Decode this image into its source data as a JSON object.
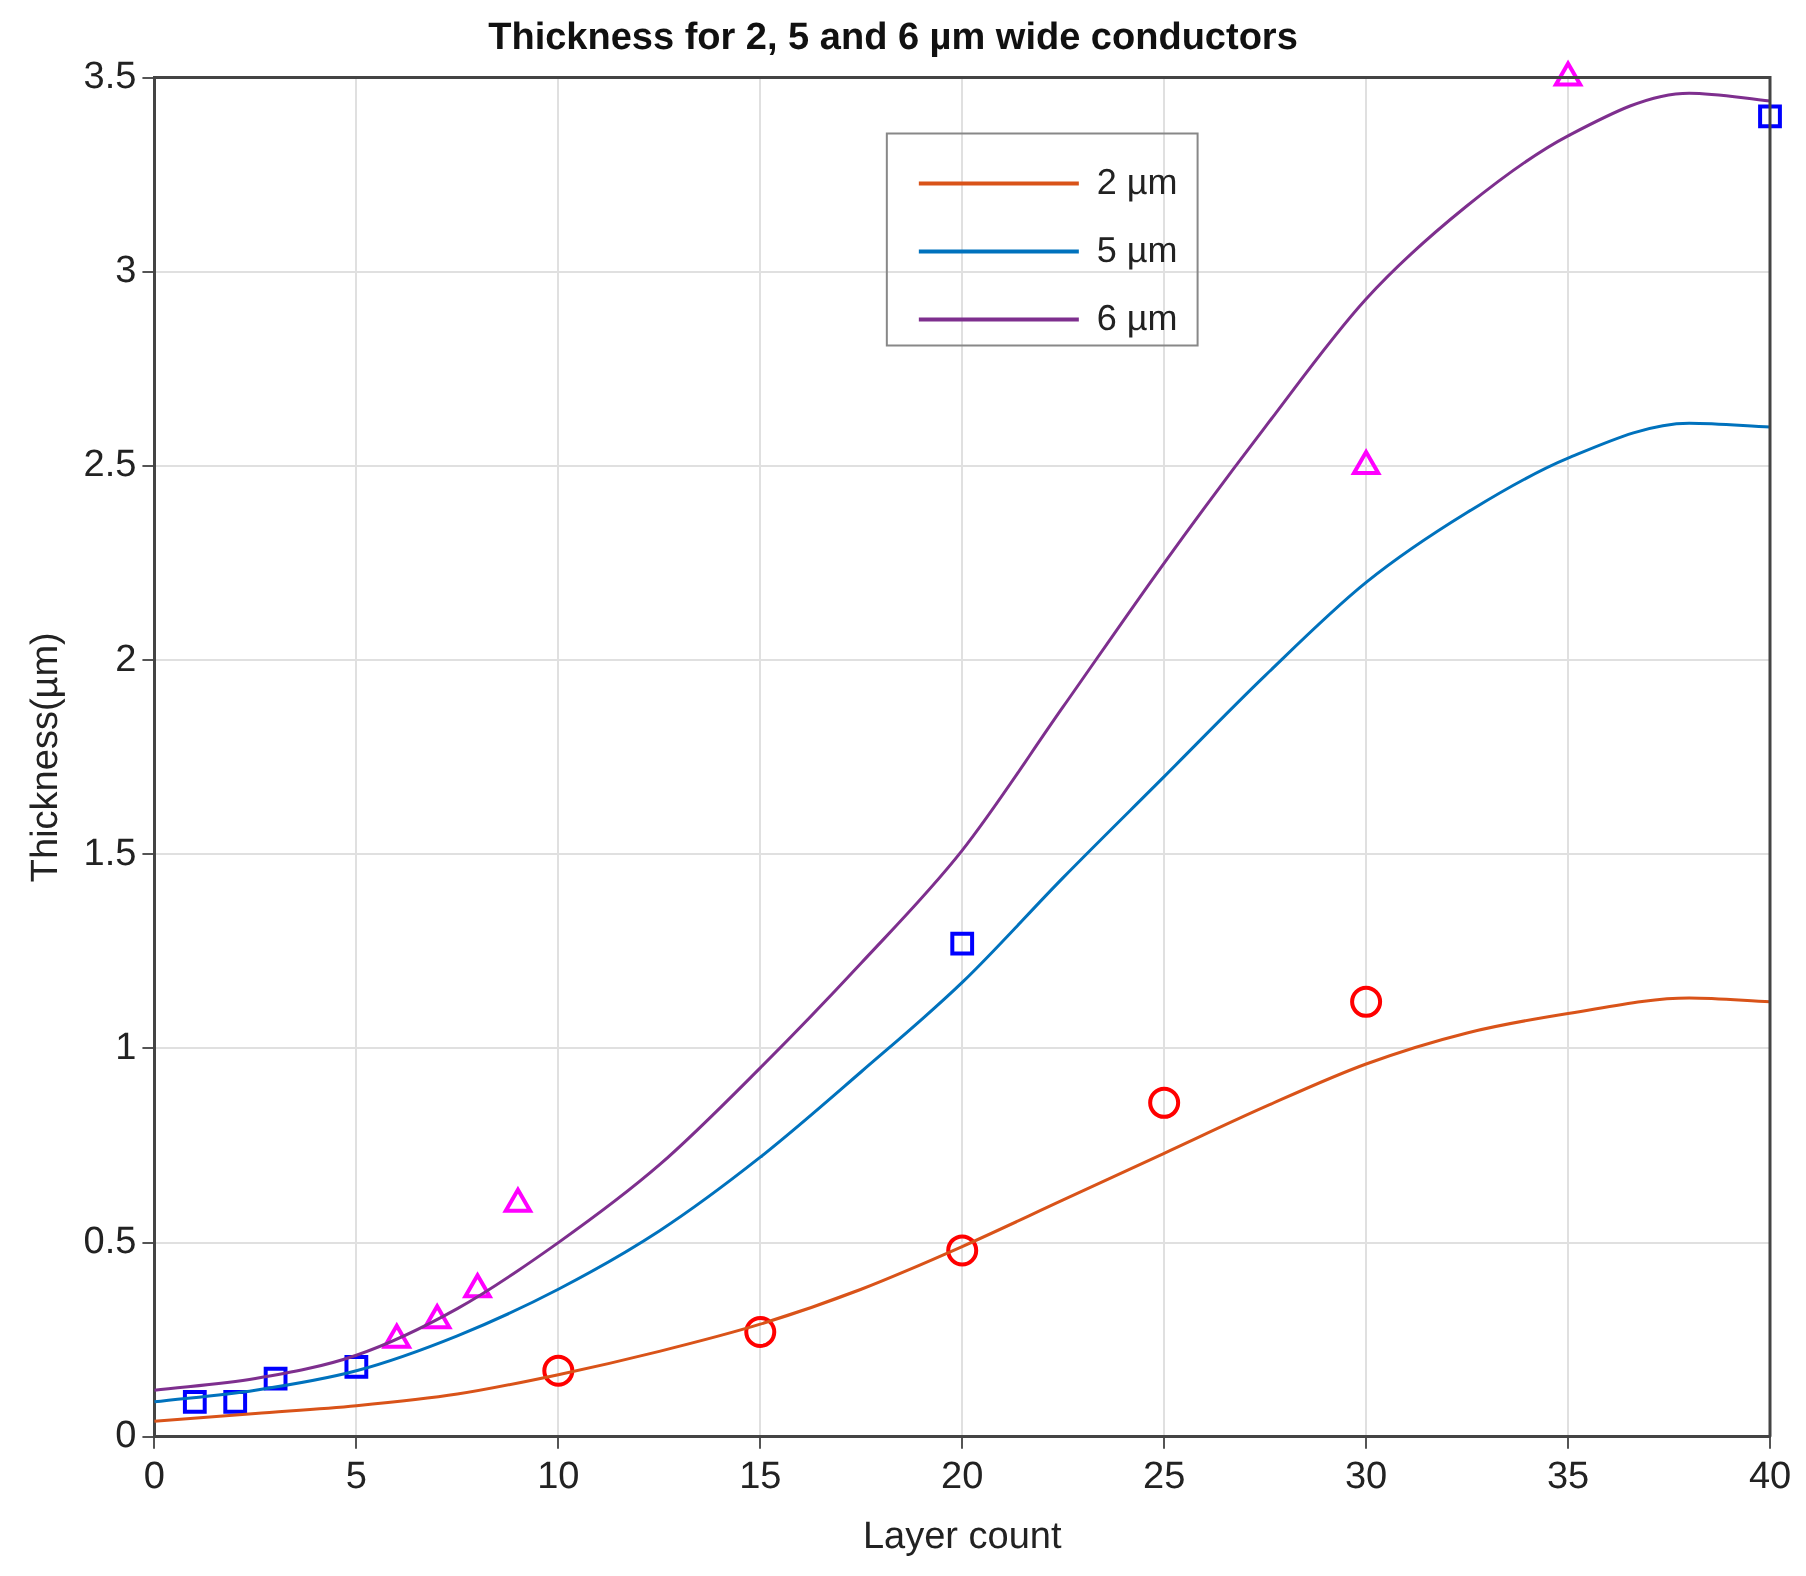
{
  "chart_data": {
    "type": "line",
    "title": "Thickness for 2, 5 and 6 µm wide conductors",
    "xlabel": "Layer count",
    "ylabel": "Thickness(µm)",
    "xlim": [
      0,
      40
    ],
    "xticks": [
      0,
      5,
      10,
      15,
      20,
      25,
      30,
      35,
      40
    ],
    "ylim": [
      0,
      3.5
    ],
    "yticks": [
      0,
      0.5,
      1,
      1.5,
      2,
      2.5,
      3,
      3.5
    ],
    "grid": true,
    "legend": "top",
    "series": [
      {
        "name": "2 µm",
        "color": "#d95319",
        "x": [
          0,
          2.5,
          5,
          7.5,
          10,
          12.5,
          15,
          17.5,
          20,
          22.5,
          25,
          27.5,
          30,
          32.5,
          35,
          38,
          40
        ],
        "values": [
          0.04,
          0.06,
          0.08,
          0.11,
          0.16,
          0.22,
          0.29,
          0.38,
          0.49,
          0.61,
          0.73,
          0.85,
          0.96,
          1.04,
          1.09,
          1.13,
          1.12
        ]
      },
      {
        "name": "5 µm",
        "color": "#0072bd",
        "x": [
          0,
          2.5,
          5,
          7.5,
          10,
          12.5,
          15,
          17.5,
          20,
          22.5,
          25,
          27.5,
          30,
          32.5,
          35,
          38,
          40
        ],
        "values": [
          0.09,
          0.12,
          0.17,
          0.26,
          0.38,
          0.53,
          0.72,
          0.94,
          1.17,
          1.44,
          1.7,
          1.96,
          2.2,
          2.38,
          2.52,
          2.61,
          2.6
        ]
      },
      {
        "name": "6 µm",
        "color": "#7e2f8e",
        "x": [
          0,
          2.5,
          5,
          7.5,
          10,
          12.5,
          15,
          17.5,
          20,
          22.5,
          25,
          27.5,
          30,
          32.5,
          35,
          38,
          40
        ],
        "values": [
          0.12,
          0.15,
          0.21,
          0.33,
          0.5,
          0.7,
          0.95,
          1.22,
          1.51,
          1.88,
          2.25,
          2.6,
          2.93,
          3.17,
          3.35,
          3.46,
          3.44
        ]
      },
      {
        "type": "scatter",
        "color": "#ff0000",
        "marker": "circle",
        "x": [
          10,
          15,
          20,
          25,
          30
        ],
        "values": [
          0.17,
          0.27,
          0.48,
          0.86,
          1.12
        ]
      },
      {
        "type": "scatter",
        "color": "#0000ff",
        "marker": "square",
        "x": [
          1,
          2,
          3,
          5,
          20,
          40
        ],
        "values": [
          0.09,
          0.09,
          0.15,
          0.18,
          1.27,
          3.4
        ]
      },
      {
        "type": "scatter",
        "color": "#ff00ff",
        "marker": "triangle",
        "x": [
          6,
          7,
          8,
          9,
          30,
          35
        ],
        "values": [
          0.25,
          0.3,
          0.38,
          0.6,
          2.5,
          3.5
        ]
      }
    ]
  }
}
